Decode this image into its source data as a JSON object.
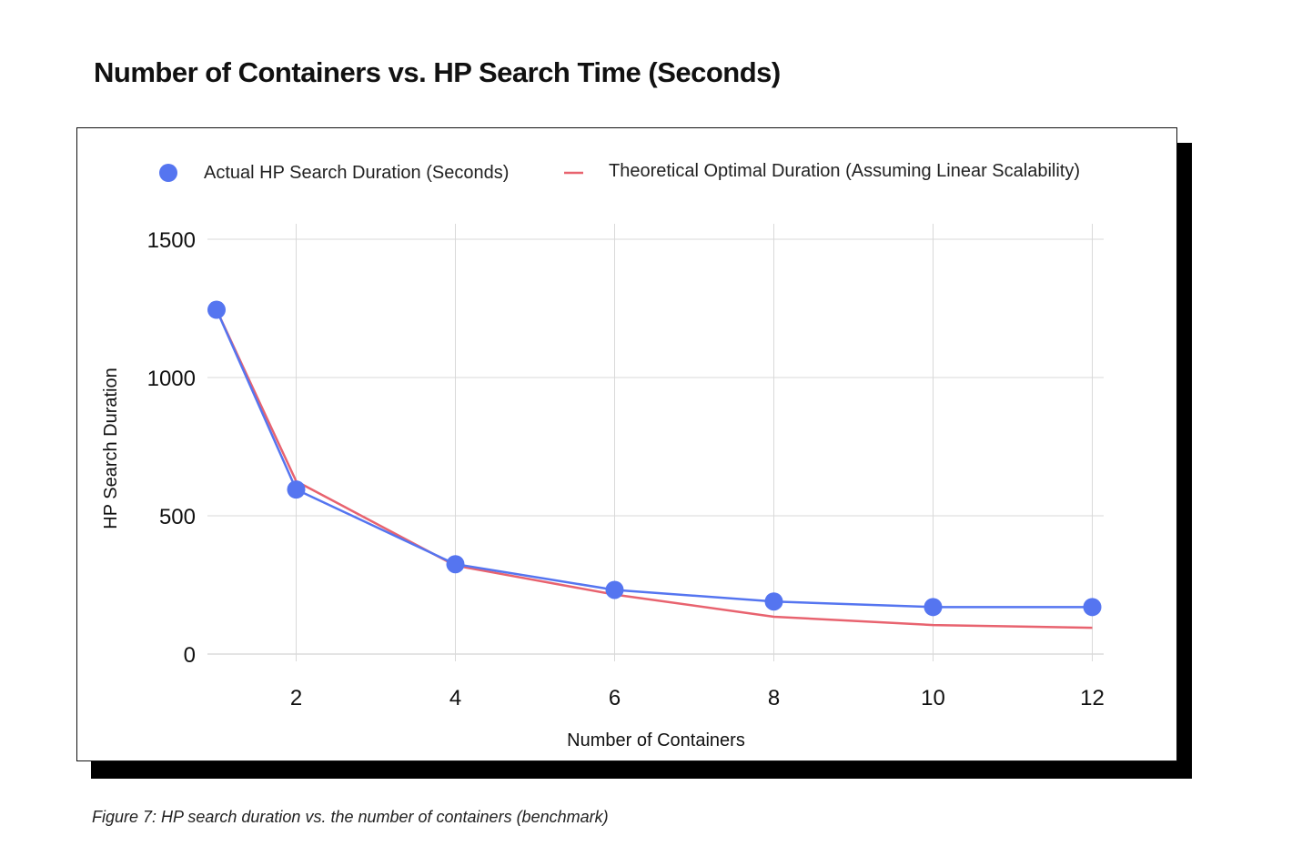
{
  "title": "Number of Containers vs. HP Search Time (Seconds)",
  "caption": "Figure 7: HP search duration vs. the number of containers (benchmark)",
  "chart_data": {
    "type": "line",
    "xlabel": "Number of Containers",
    "ylabel": "HP Search Duration",
    "xlim": [
      0.5,
      12.2
    ],
    "ylim": [
      0,
      1500
    ],
    "x_ticks": [
      "2",
      "4",
      "6",
      "8",
      "10",
      "12"
    ],
    "y_ticks": [
      "0",
      "500",
      "1000",
      "1500"
    ],
    "grid": true,
    "legend_position": "top",
    "x": [
      1,
      2,
      4,
      6,
      8,
      10,
      12
    ],
    "series": [
      {
        "name": "Actual HP Search Duration (Seconds)",
        "style": "line-with-markers",
        "color": "#5575f0",
        "values": [
          1245,
          595,
          325,
          232,
          190,
          170,
          170
        ]
      },
      {
        "name": "Theoretical Optimal Duration (Assuming Linear Scalability)",
        "style": "line",
        "color": "#e8636f",
        "values": [
          1245,
          625,
          320,
          215,
          135,
          105,
          95
        ]
      }
    ]
  }
}
